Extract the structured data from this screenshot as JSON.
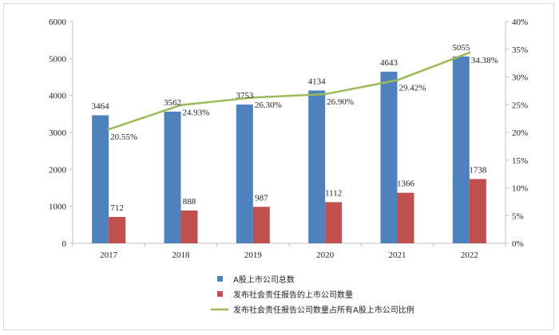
{
  "chart_data": {
    "type": "bar",
    "categories": [
      "2017",
      "2018",
      "2019",
      "2020",
      "2021",
      "2022"
    ],
    "series": [
      {
        "name": "A股上市公司总数",
        "kind": "bar",
        "axis": "left",
        "color": "#4F81BD",
        "values": [
          3464,
          3562,
          3753,
          4134,
          4643,
          5055
        ],
        "labels": [
          "3464",
          "3562",
          "3753",
          "4134",
          "4643",
          "5055"
        ]
      },
      {
        "name": "发布社会责任报告的上市公司数量",
        "kind": "bar",
        "axis": "left",
        "color": "#C0504D",
        "values": [
          712,
          888,
          987,
          1112,
          1366,
          1738
        ],
        "labels": [
          "712",
          "888",
          "987",
          "1112",
          "1366",
          "1738"
        ]
      },
      {
        "name": "发布社会责任报告公司数量占所有A股上市公司比例",
        "kind": "line",
        "axis": "right",
        "color": "#9BBB59",
        "values": [
          20.55,
          24.93,
          26.3,
          26.9,
          29.42,
          34.38
        ],
        "labels": [
          "20.55%",
          "24.93%",
          "26.30%",
          "26.90%",
          "29.42%",
          "34.38%"
        ]
      }
    ],
    "y_left": {
      "ylim": [
        0,
        6000
      ],
      "ticks": [
        "0",
        "1000",
        "2000",
        "3000",
        "4000",
        "5000",
        "6000"
      ]
    },
    "y_right": {
      "ylim": [
        0,
        40
      ],
      "ticks": [
        "0%",
        "5%",
        "10%",
        "15%",
        "20%",
        "25%",
        "30%",
        "35%",
        "40%"
      ]
    },
    "grid": false,
    "legend_position": "bottom"
  }
}
